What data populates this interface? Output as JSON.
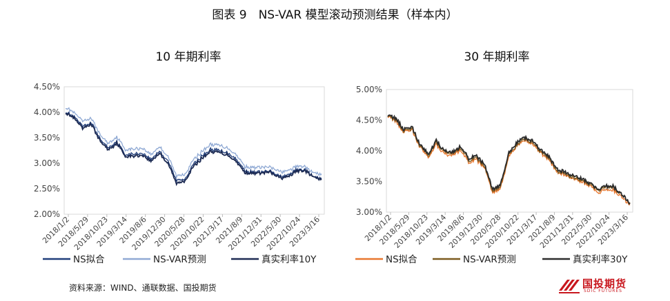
{
  "figure_title": "图表 9　NS-VAR 模型滚动预测结果（样本内）",
  "source": "资料来源：WIND、通联数据、国投期货",
  "logo": {
    "name": "国投期货",
    "sub": "SDIC FUTURES"
  },
  "chart_data": [
    {
      "type": "line",
      "title": "10 年期利率",
      "x_ticks": [
        "2018/1/2",
        "2018/5/29",
        "2018/10/23",
        "2019/3/14",
        "2019/8/6",
        "2019/12/30",
        "2020/5/28",
        "2020/10/22",
        "2021/3/17",
        "2021/8/9",
        "2021/12/31",
        "2022/5/30",
        "2022/10/24",
        "2023/3/16"
      ],
      "y_ticks": [
        "2.00%",
        "2.50%",
        "3.00%",
        "3.50%",
        "4.00%",
        "4.50%"
      ],
      "ylim": [
        2.0,
        4.5
      ],
      "legend_position": "bottom",
      "series": [
        {
          "name": "NS拟合",
          "color": "#1f3d7a",
          "values": [
            4.02,
            3.91,
            3.72,
            3.8,
            3.48,
            3.3,
            3.43,
            3.17,
            3.18,
            3.2,
            3.08,
            3.24,
            3.05,
            2.66,
            2.7,
            2.98,
            3.14,
            3.27,
            3.25,
            3.21,
            3.08,
            2.86,
            2.82,
            2.83,
            2.84,
            2.75,
            2.75,
            2.87,
            2.88,
            2.74,
            2.69
          ]
        },
        {
          "name": "NS-VAR预测",
          "color": "#8fa9d4",
          "values": [
            4.11,
            3.99,
            3.82,
            3.89,
            3.57,
            3.39,
            3.52,
            3.27,
            3.28,
            3.3,
            3.17,
            3.33,
            3.14,
            2.75,
            2.79,
            3.07,
            3.24,
            3.37,
            3.35,
            3.3,
            3.17,
            2.94,
            2.91,
            2.92,
            2.92,
            2.84,
            2.84,
            2.94,
            2.94,
            2.81,
            2.77
          ]
        },
        {
          "name": "真实利率10Y",
          "color": "#1c2a52",
          "values": [
            4.0,
            3.88,
            3.68,
            3.77,
            3.45,
            3.26,
            3.4,
            3.14,
            3.14,
            3.16,
            3.04,
            3.2,
            3.0,
            2.6,
            2.66,
            2.93,
            3.1,
            3.23,
            3.21,
            3.17,
            3.04,
            2.82,
            2.8,
            2.81,
            2.82,
            2.72,
            2.72,
            2.84,
            2.86,
            2.73,
            2.67
          ]
        }
      ]
    },
    {
      "type": "line",
      "title": "30 年期利率",
      "x_ticks": [
        "2018/1/2",
        "2018/5/29",
        "2018/10/23",
        "2019/3/14",
        "2019/8/6",
        "2019/12/30",
        "2020/5/28",
        "2020/10/22",
        "2021/3/17",
        "2021/8/9",
        "2021/12/31",
        "2022/5/30",
        "2022/10/24",
        "2023/3/16"
      ],
      "y_ticks": [
        "3.00%",
        "3.50%",
        "4.00%",
        "4.50%",
        "5.00%"
      ],
      "ylim": [
        3.0,
        5.0
      ],
      "legend_position": "bottom",
      "series": [
        {
          "name": "NS拟合",
          "color": "#e8762d",
          "values": [
            4.58,
            4.48,
            4.3,
            4.35,
            4.05,
            3.9,
            4.1,
            3.96,
            3.93,
            4.0,
            3.82,
            3.85,
            3.72,
            3.3,
            3.4,
            3.9,
            4.08,
            4.18,
            4.1,
            3.96,
            3.85,
            3.64,
            3.6,
            3.55,
            3.5,
            3.44,
            3.3,
            3.38,
            3.35,
            3.24,
            3.12
          ]
        },
        {
          "name": "NS-VAR预测",
          "color": "#7b5a1e",
          "values": [
            4.59,
            4.5,
            4.32,
            4.37,
            4.07,
            3.93,
            4.13,
            3.99,
            3.96,
            4.03,
            3.85,
            3.88,
            3.74,
            3.33,
            3.43,
            3.93,
            4.1,
            4.2,
            4.12,
            3.98,
            3.87,
            3.66,
            3.62,
            3.57,
            3.52,
            3.46,
            3.34,
            3.42,
            3.39,
            3.28,
            3.15
          ]
        },
        {
          "name": "真实利率30Y",
          "color": "#2b2b2b",
          "values": [
            4.6,
            4.52,
            4.34,
            4.4,
            4.09,
            3.96,
            4.16,
            4.01,
            3.98,
            4.06,
            3.88,
            3.91,
            3.77,
            3.36,
            3.46,
            3.96,
            4.13,
            4.23,
            4.15,
            4.01,
            3.9,
            3.69,
            3.65,
            3.6,
            3.55,
            3.48,
            3.36,
            3.44,
            3.41,
            3.29,
            3.14
          ]
        }
      ]
    }
  ]
}
